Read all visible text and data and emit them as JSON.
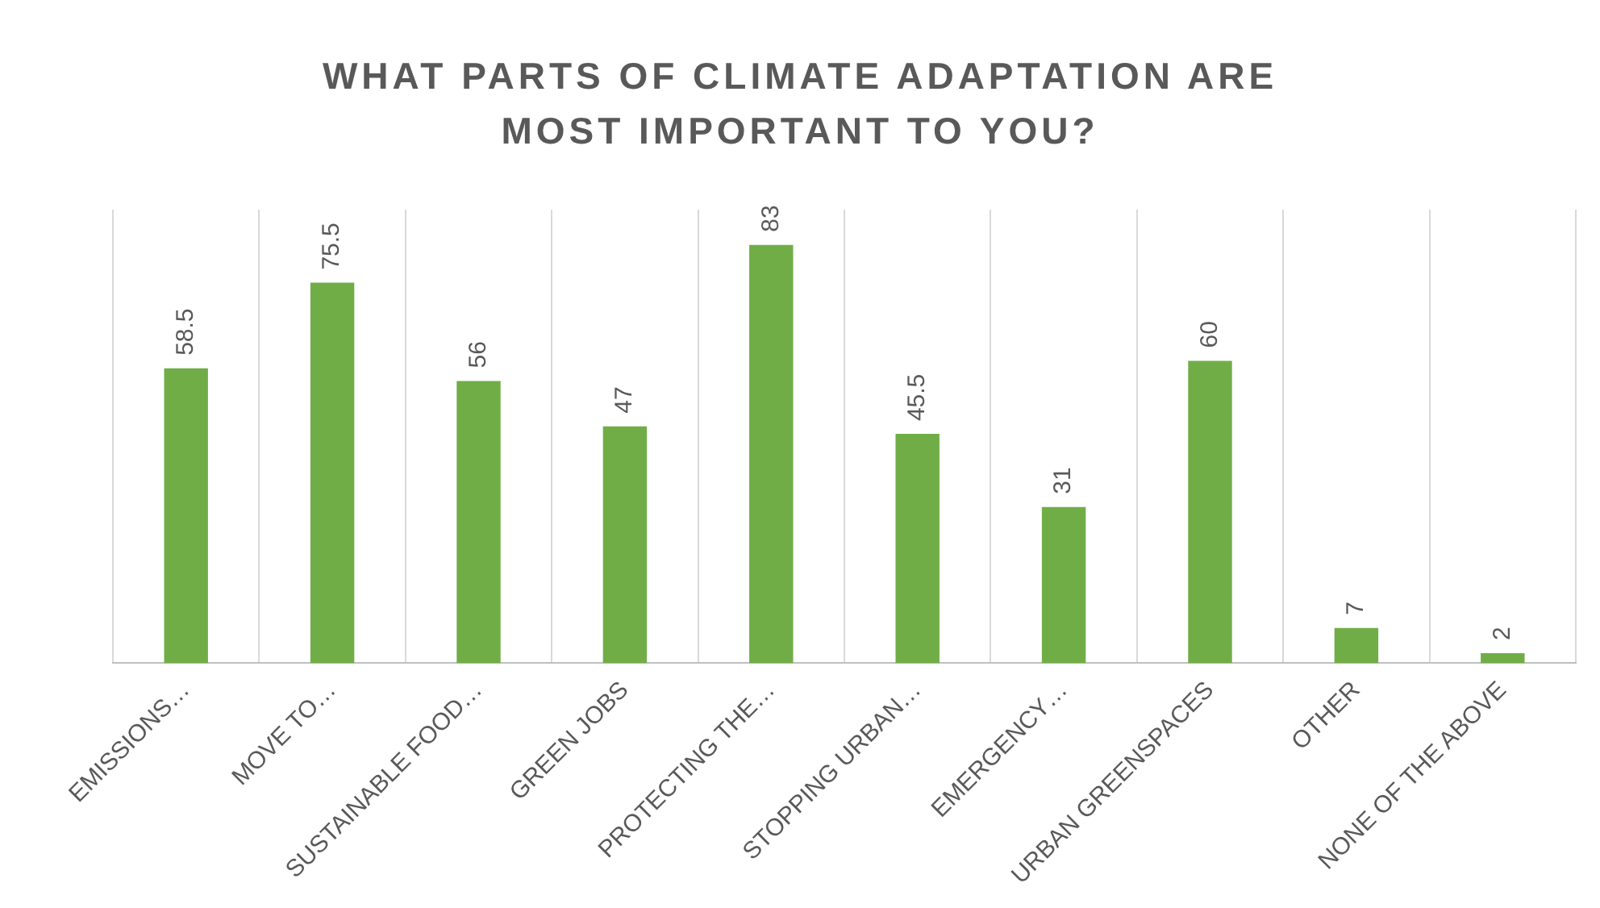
{
  "chart_data": {
    "type": "bar",
    "title": "WHAT PARTS OF CLIMATE ADAPTATION ARE MOST IMPORTANT TO YOU?",
    "categories": [
      "EMISSIONS…",
      "MOVE TO…",
      "SUSTAINABLE FOOD…",
      "GREEN JOBS",
      "PROTECTING THE…",
      "STOPPING URBAN…",
      "EMERGENCY…",
      "URBAN GREENSPACES",
      "OTHER",
      "NONE OF THE ABOVE"
    ],
    "values": [
      58.5,
      75.5,
      56,
      47,
      83,
      45.5,
      31,
      60,
      7,
      2
    ],
    "color": "#70ad47",
    "data_labels": true,
    "grid": "x",
    "legend": false
  }
}
